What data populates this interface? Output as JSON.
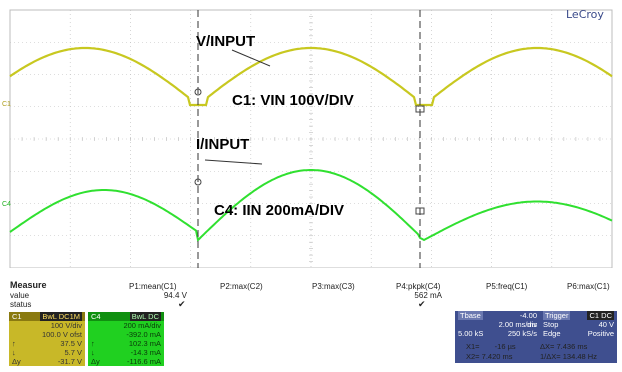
{
  "brand": "LeCroy",
  "annotations": {
    "v_input": "V/INPUT",
    "c1": "C1: VIN 100V/DIV",
    "i_input": "I/INPUT",
    "c4": "C4: IIN 200mA/DIV"
  },
  "side_markers": {
    "c1": "C1",
    "c4": "C4"
  },
  "measure": {
    "header": "Measure",
    "row_value": "value",
    "row_status": "status",
    "params": [
      {
        "name": "P1:mean(C1)",
        "value": "94.4 V",
        "status": "✔"
      },
      {
        "name": "P2:max(C2)",
        "value": "",
        "status": ""
      },
      {
        "name": "P3:max(C3)",
        "value": "",
        "status": ""
      },
      {
        "name": "P4:pkpk(C4)",
        "value": "562 mA",
        "status": "✔"
      },
      {
        "name": "P5:freq(C1)",
        "value": "",
        "status": ""
      },
      {
        "name": "P6:max(C1)",
        "value": "",
        "status": ""
      }
    ]
  },
  "channel_c1": {
    "label": "C1",
    "badge": "BwL DC1M",
    "vdiv": "100 V/div",
    "offset": "100.0 V ofst",
    "rows": [
      {
        "k": "↑",
        "v": "37.5 V"
      },
      {
        "k": "↓",
        "v": "5.7 V"
      },
      {
        "k": "Δy",
        "v": "-31.7 V"
      }
    ]
  },
  "channel_c4": {
    "label": "C4",
    "badge": "BwL DC",
    "vdiv": "200 mA/div",
    "offset": "-392.0 mA",
    "rows": [
      {
        "k": "↑",
        "v": "102.3 mA"
      },
      {
        "k": "↓",
        "v": "-14.3 mA"
      },
      {
        "k": "Δy",
        "v": "-116.6 mA"
      }
    ]
  },
  "timebase": {
    "label": "Tbase",
    "delay": "-4.00 ms",
    "tdiv": "2.00 ms/div",
    "samples": "5.00 kS",
    "rate": "250 kS/s"
  },
  "trigger": {
    "label": "Trigger",
    "badge": "C1 DC",
    "mode": "Stop",
    "level": "40 V",
    "type": "Edge",
    "slope": "Positive"
  },
  "cursors": {
    "x1": "X1=",
    "x1_val": "-16 µs",
    "dx": "ΔX=",
    "dx_val": "7.436 ms",
    "x2": "X2=",
    "x2_val": "7.420 ms",
    "inv_dx": "1/ΔX=",
    "inv_dx_val": "134.48 Hz"
  },
  "colors": {
    "c1_trace": "#c8c820",
    "c4_trace": "#30e030",
    "c1_panel": "#c8b828",
    "c4_panel": "#20d020",
    "grid": "#bcbcbc",
    "panel_blue": "#3f4f8f"
  }
}
